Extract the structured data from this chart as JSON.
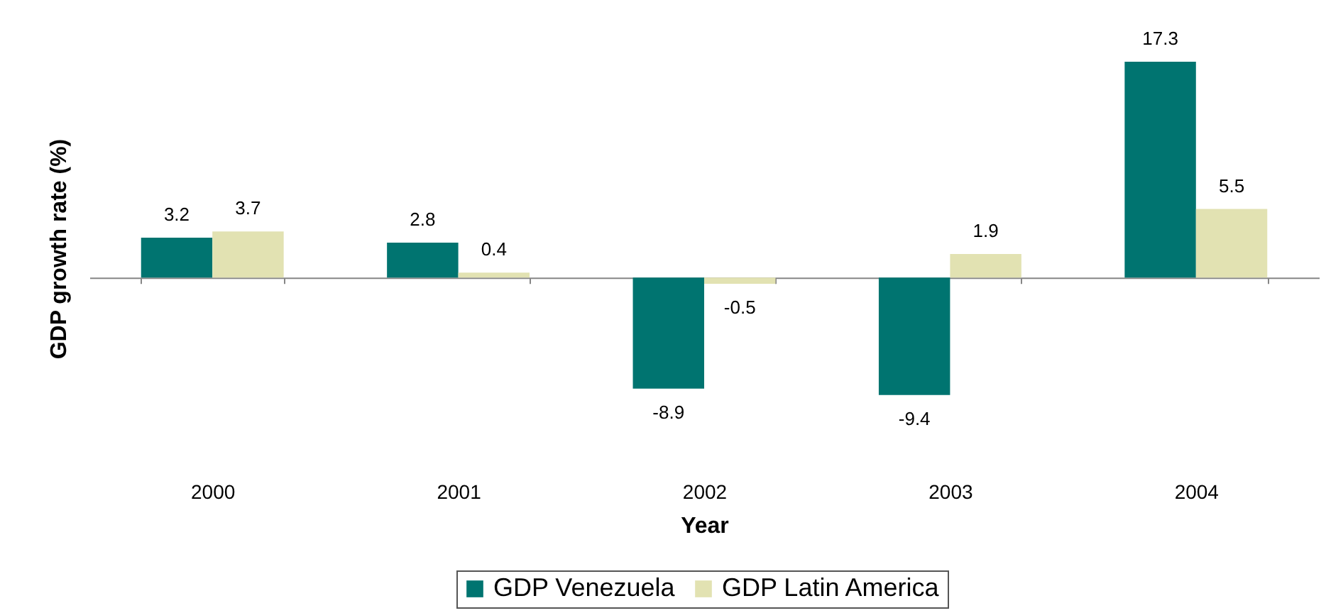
{
  "chart_data": {
    "type": "bar",
    "xlabel": "Year",
    "ylabel": "GDP growth rate (%)",
    "categories": [
      "2000",
      "2001",
      "2002",
      "2003",
      "2004"
    ],
    "series": [
      {
        "name": "GDP Venezuela",
        "color": "#007470",
        "values": [
          3.2,
          2.8,
          -8.9,
          -9.4,
          17.3
        ]
      },
      {
        "name": "GDP Latin America",
        "color": "#e2e2b2",
        "values": [
          3.7,
          0.4,
          -0.5,
          1.9,
          5.5
        ]
      }
    ],
    "data_labels": true,
    "legend": "bottom",
    "grid": false,
    "tick_labels": "x"
  }
}
